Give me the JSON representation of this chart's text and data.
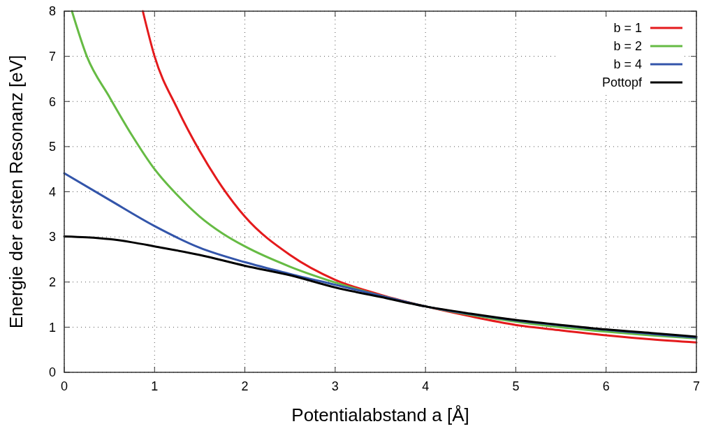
{
  "chart_data": {
    "type": "line",
    "xlabel": "Potentialabstand a [Å]",
    "ylabel": "Energie der ersten Resonanz [eV]",
    "xlim": [
      0,
      7
    ],
    "ylim": [
      0,
      8
    ],
    "xticks": [
      0,
      1,
      2,
      3,
      4,
      5,
      6,
      7
    ],
    "yticks": [
      0,
      1,
      2,
      3,
      4,
      5,
      6,
      7,
      8
    ],
    "grid": true,
    "legend": "top right",
    "line_style": "solid",
    "marker": "none",
    "series": [
      {
        "name": "b = 1",
        "color": "#e41a1c",
        "x": [
          0.87,
          1,
          1.25,
          1.5,
          1.75,
          2,
          2.5,
          3,
          3.5,
          4,
          4.5,
          5,
          5.5,
          6,
          6.5,
          7
        ],
        "values": [
          8,
          7.0,
          5.85,
          4.9,
          4.1,
          3.45,
          2.6,
          2.05,
          1.72,
          1.46,
          1.24,
          1.05,
          0.93,
          0.82,
          0.73,
          0.66
        ]
      },
      {
        "name": "b = 2",
        "color": "#66bb44",
        "x": [
          0.085,
          0.25,
          0.5,
          0.75,
          1,
          1.25,
          1.5,
          1.75,
          2,
          2.5,
          3,
          3.5,
          4,
          5,
          6,
          7
        ],
        "values": [
          8,
          7.0,
          6.1,
          5.25,
          4.5,
          3.93,
          3.45,
          3.08,
          2.79,
          2.34,
          1.99,
          1.7,
          1.46,
          1.12,
          0.9,
          0.75
        ]
      },
      {
        "name": "b = 4",
        "color": "#3355aa",
        "x": [
          0,
          0.5,
          1,
          1.5,
          2,
          2.5,
          3,
          3.5,
          4,
          5,
          6,
          7
        ],
        "values": [
          4.41,
          3.82,
          3.24,
          2.76,
          2.44,
          2.18,
          1.94,
          1.7,
          1.46,
          1.15,
          0.94,
          0.77
        ]
      },
      {
        "name": "Pottopf",
        "color": "#000000",
        "x": [
          0,
          0.25,
          0.5,
          0.75,
          1,
          1.5,
          2,
          2.5,
          3,
          3.5,
          4,
          4.5,
          5,
          5.5,
          6,
          6.5,
          7
        ],
        "values": [
          3.01,
          2.99,
          2.95,
          2.88,
          2.79,
          2.6,
          2.36,
          2.15,
          1.88,
          1.67,
          1.46,
          1.3,
          1.16,
          1.05,
          0.95,
          0.87,
          0.79
        ]
      }
    ]
  }
}
